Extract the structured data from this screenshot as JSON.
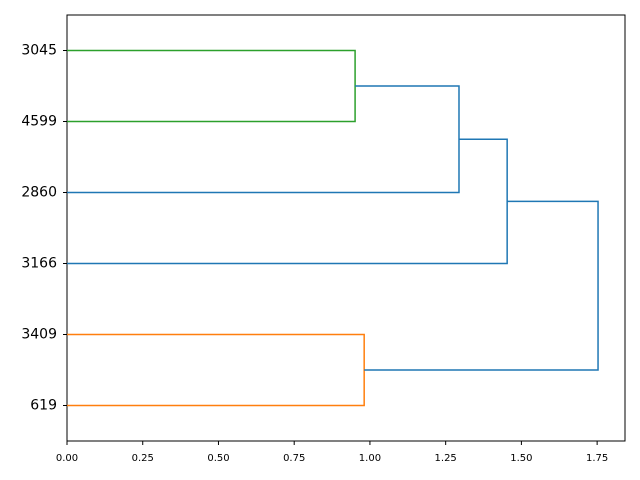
{
  "chart_data": {
    "type": "dendrogram",
    "orientation": "left",
    "categories": [
      "3045",
      "4599",
      "2860",
      "3166",
      "3409",
      "619"
    ],
    "links": [
      {
        "children": [
          0,
          1
        ],
        "height": 0.951,
        "color": "#2ca02c"
      },
      {
        "children": [
          4,
          5
        ],
        "height": 0.981,
        "color": "#ff7f0e"
      },
      {
        "children": [
          6,
          2
        ],
        "height": 1.294,
        "color": "#1f77b4"
      },
      {
        "children": [
          8,
          3
        ],
        "height": 1.453,
        "color": "#1f77b4"
      },
      {
        "children": [
          9,
          7
        ],
        "height": 1.753,
        "color": "#1f77b4"
      }
    ],
    "xlim": [
      0,
      1.842
    ],
    "xticks": [
      {
        "value": 0,
        "label": "0.00"
      },
      {
        "value": 0.25,
        "label": "0.25"
      },
      {
        "value": 0.5,
        "label": "0.50"
      },
      {
        "value": 0.75,
        "label": "0.75"
      },
      {
        "value": 1,
        "label": "1.00"
      },
      {
        "value": 1.25,
        "label": "1.25"
      },
      {
        "value": 1.5,
        "label": "1.50"
      },
      {
        "value": 1.75,
        "label": "1.75"
      }
    ]
  }
}
